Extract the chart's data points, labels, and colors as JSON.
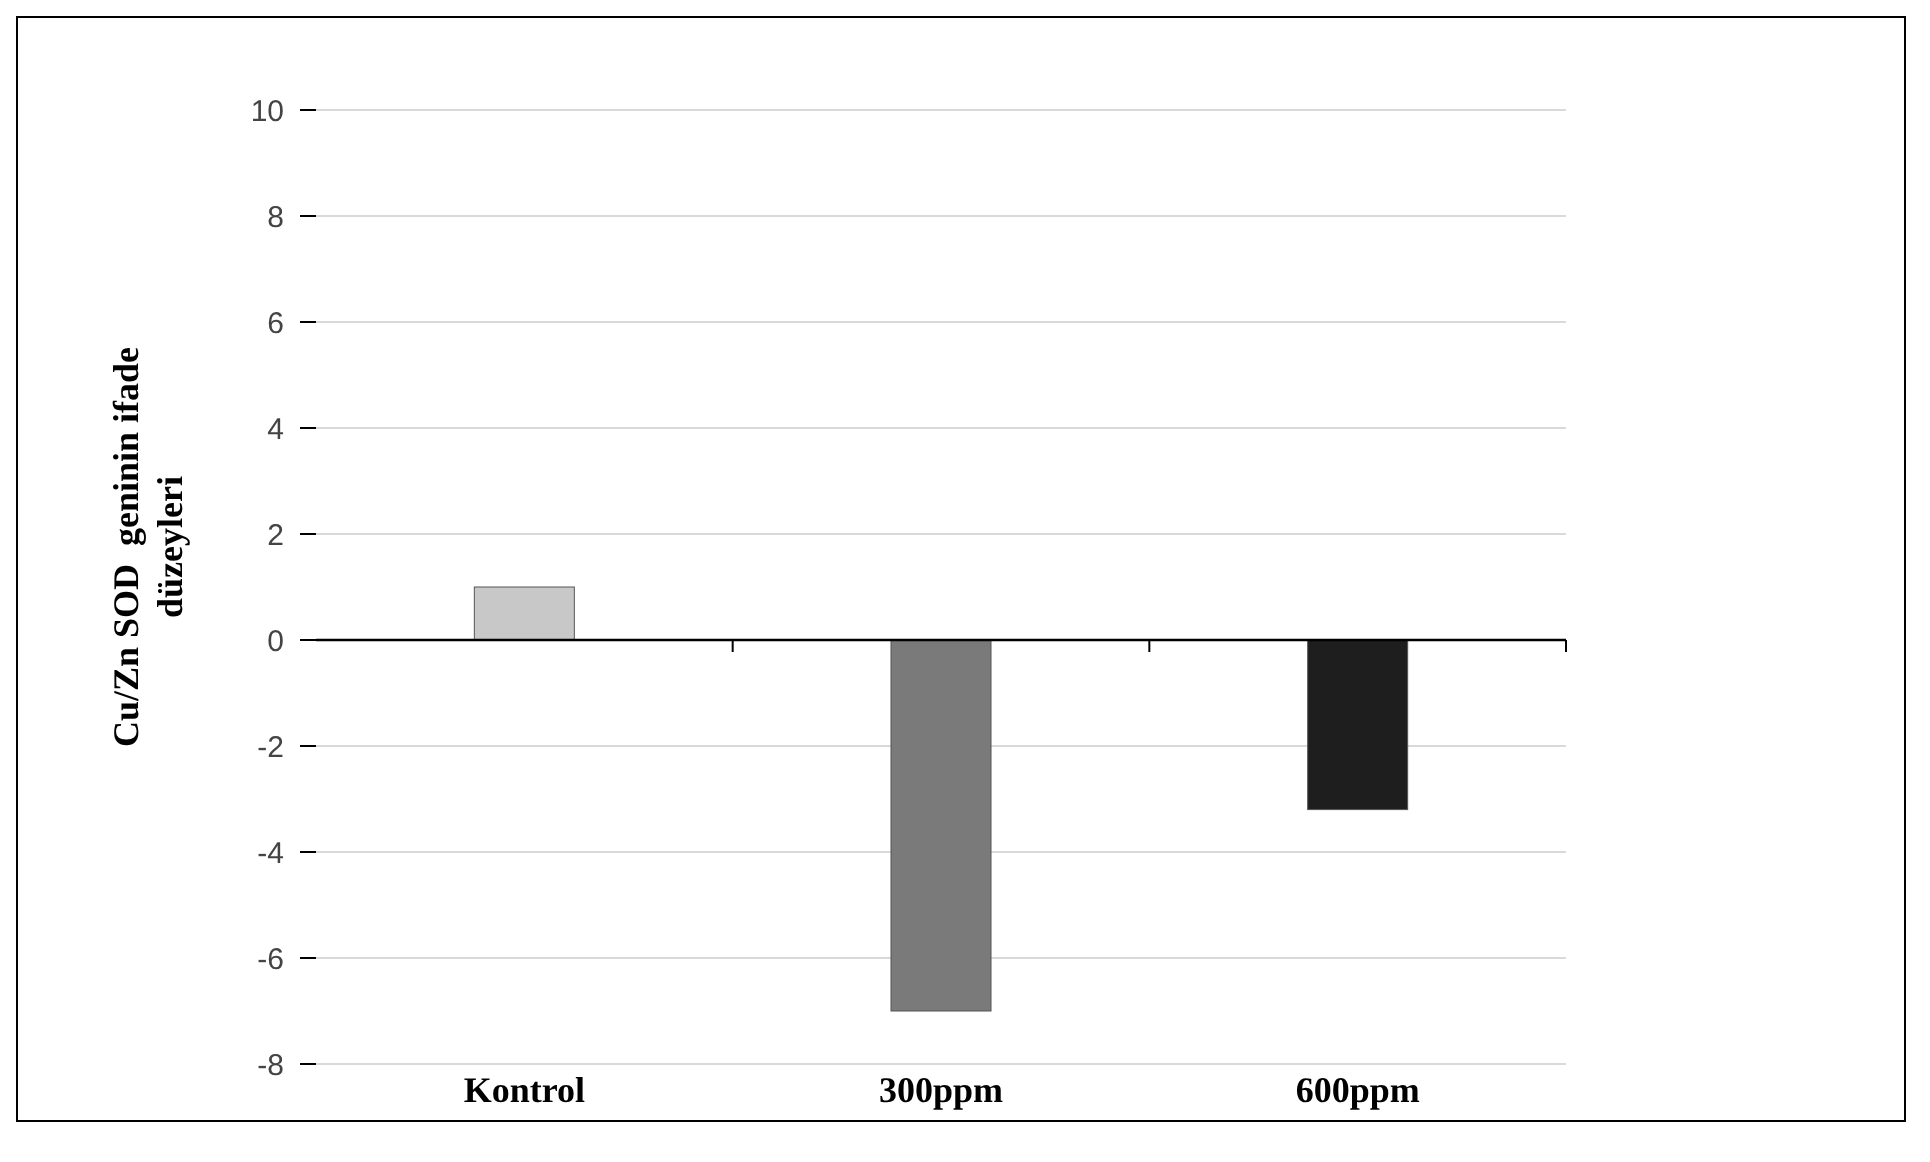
{
  "chart_data": {
    "type": "bar",
    "ylabel": "Cu/Zn SOD  geninin ifade düzeyleri",
    "categories": [
      "Kontrol",
      "300ppm",
      "600ppm"
    ],
    "values": [
      1.0,
      -7.0,
      -3.2
    ],
    "colors": [
      "#c8c8c8",
      "#7a7a7a",
      "#1e1e1e"
    ],
    "ylim": [
      -8,
      10
    ],
    "yticks": [
      -8,
      -6,
      -4,
      -2,
      0,
      2,
      4,
      6,
      8,
      10
    ],
    "grid": "y"
  }
}
